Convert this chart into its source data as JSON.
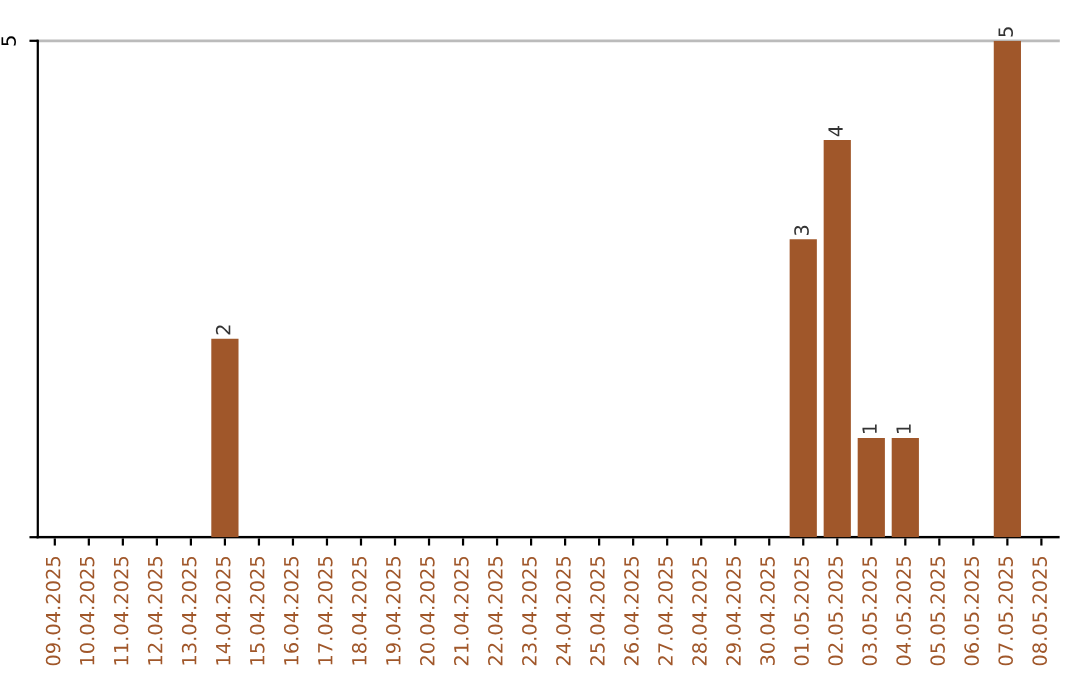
{
  "chart_data": {
    "type": "bar",
    "categories": [
      "09.04.2025",
      "10.04.2025",
      "11.04.2025",
      "12.04.2025",
      "13.04.2025",
      "14.04.2025",
      "15.04.2025",
      "16.04.2025",
      "17.04.2025",
      "18.04.2025",
      "19.04.2025",
      "20.04.2025",
      "21.04.2025",
      "22.04.2025",
      "23.04.2025",
      "24.04.2025",
      "25.04.2025",
      "26.04.2025",
      "27.04.2025",
      "28.04.2025",
      "29.04.2025",
      "30.04.2025",
      "01.05.2025",
      "02.05.2025",
      "03.05.2025",
      "04.05.2025",
      "05.05.2025",
      "06.05.2025",
      "07.05.2025",
      "08.05.2025"
    ],
    "values": [
      0,
      0,
      0,
      0,
      0,
      2,
      0,
      0,
      0,
      0,
      0,
      0,
      0,
      0,
      0,
      0,
      0,
      0,
      0,
      0,
      0,
      0,
      3,
      4,
      1,
      1,
      0,
      0,
      5,
      0
    ],
    "value_labels": [
      null,
      null,
      null,
      null,
      null,
      "2",
      null,
      null,
      null,
      null,
      null,
      null,
      null,
      null,
      null,
      null,
      null,
      null,
      null,
      null,
      null,
      null,
      "3",
      "4",
      "1",
      "1",
      null,
      null,
      "5",
      null
    ],
    "color": "#a0572a",
    "ylim": [
      0,
      5
    ],
    "yticks": [
      {
        "value": 0,
        "label": null
      },
      5
    ],
    "grid": "y"
  }
}
